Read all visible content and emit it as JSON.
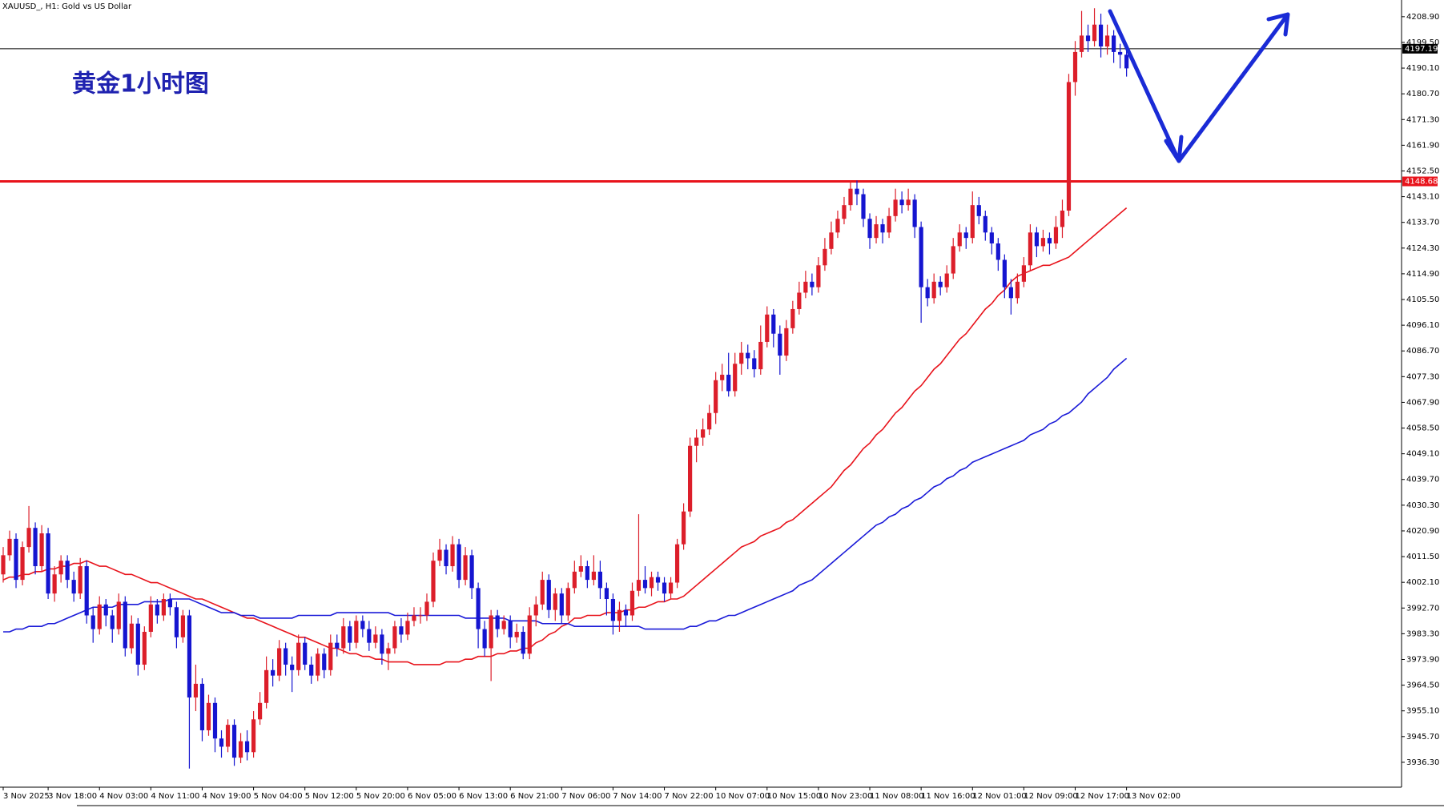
{
  "chart_data": {
    "type": "candlestick",
    "header": "XAUUSD_, H1:  Gold vs US Dollar",
    "title": "黄金1小时图",
    "up_color": "#dc1e2a",
    "down_color": "#1515d0",
    "ylim": [
      3927.2,
      4215.0
    ],
    "yticks": [
      {
        "value": 4208.9,
        "label": "4208.90"
      },
      {
        "value": 4199.5,
        "label": "4199.50"
      },
      {
        "value": 4190.1,
        "label": "4190.10"
      },
      {
        "value": 4180.7,
        "label": "4180.70"
      },
      {
        "value": 4171.3,
        "label": "4171.30"
      },
      {
        "value": 4161.9,
        "label": "4161.90"
      },
      {
        "value": 4152.5,
        "label": "4152.50"
      },
      {
        "value": 4143.1,
        "label": "4143.10"
      },
      {
        "value": 4133.7,
        "label": "4133.70"
      },
      {
        "value": 4124.3,
        "label": "4124.30"
      },
      {
        "value": 4114.9,
        "label": "4114.90"
      },
      {
        "value": 4105.5,
        "label": "4105.50"
      },
      {
        "value": 4096.1,
        "label": "4096.10"
      },
      {
        "value": 4086.7,
        "label": "4086.70"
      },
      {
        "value": 4077.3,
        "label": "4077.30"
      },
      {
        "value": 4067.9,
        "label": "4067.90"
      },
      {
        "value": 4058.5,
        "label": "4058.50"
      },
      {
        "value": 4049.1,
        "label": "4049.10"
      },
      {
        "value": 4039.7,
        "label": "4039.70"
      },
      {
        "value": 4030.3,
        "label": "4030.30"
      },
      {
        "value": 4020.9,
        "label": "4020.90"
      },
      {
        "value": 4011.5,
        "label": "4011.50"
      },
      {
        "value": 4002.1,
        "label": "4002.10"
      },
      {
        "value": 3992.7,
        "label": "3992.70"
      },
      {
        "value": 3983.3,
        "label": "3983.30"
      },
      {
        "value": 3973.9,
        "label": "3973.90"
      },
      {
        "value": 3964.5,
        "label": "3964.50"
      },
      {
        "value": 3955.1,
        "label": "3955.10"
      },
      {
        "value": 3945.7,
        "label": "3945.70"
      },
      {
        "value": 3936.3,
        "label": "3936.30"
      }
    ],
    "current_price": 4197.19,
    "level_line": {
      "value": 4148.68,
      "color": "#e8131b"
    },
    "categories": [
      "3 Nov 2025",
      null,
      null,
      null,
      null,
      null,
      null,
      "3 Nov 18:00",
      null,
      null,
      null,
      null,
      null,
      null,
      null,
      "4 Nov 03:00",
      null,
      null,
      null,
      null,
      null,
      null,
      null,
      "4 Nov 11:00",
      null,
      null,
      null,
      null,
      null,
      null,
      null,
      "4 Nov 19:00",
      null,
      null,
      null,
      null,
      null,
      null,
      null,
      "5 Nov 04:00",
      null,
      null,
      null,
      null,
      null,
      null,
      null,
      "5 Nov 12:00",
      null,
      null,
      null,
      null,
      null,
      null,
      null,
      "5 Nov 20:00",
      null,
      null,
      null,
      null,
      null,
      null,
      null,
      "6 Nov 05:00",
      null,
      null,
      null,
      null,
      null,
      null,
      null,
      "6 Nov 13:00",
      null,
      null,
      null,
      null,
      null,
      null,
      null,
      "6 Nov 21:00",
      null,
      null,
      null,
      null,
      null,
      null,
      null,
      "7 Nov 06:00",
      null,
      null,
      null,
      null,
      null,
      null,
      null,
      "7 Nov 14:00",
      null,
      null,
      null,
      null,
      null,
      null,
      null,
      "7 Nov 22:00",
      null,
      null,
      null,
      null,
      null,
      null,
      null,
      "10 Nov 07:00",
      null,
      null,
      null,
      null,
      null,
      null,
      null,
      "10 Nov 15:00",
      null,
      null,
      null,
      null,
      null,
      null,
      null,
      "10 Nov 23:00",
      null,
      null,
      null,
      null,
      null,
      null,
      null,
      "11 Nov 08:00",
      null,
      null,
      null,
      null,
      null,
      null,
      null,
      "11 Nov 16:00",
      null,
      null,
      null,
      null,
      null,
      null,
      null,
      "12 Nov 01:00",
      null,
      null,
      null,
      null,
      null,
      null,
      null,
      "12 Nov 09:00",
      null,
      null,
      null,
      null,
      null,
      null,
      null,
      "12 Nov 17:00",
      null,
      null,
      null,
      null,
      null,
      null,
      null,
      "13 Nov 02:00"
    ],
    "open": [
      4005,
      4012,
      4018,
      4003,
      4015,
      4022,
      4008,
      4020,
      3998,
      4005,
      4010,
      4003,
      3998,
      4008,
      3990,
      3985,
      3994,
      3990,
      3985,
      3995,
      3978,
      3987,
      3972,
      3984,
      3994,
      3990,
      3996,
      3993,
      3982,
      3990,
      3960,
      3965,
      3948,
      3958,
      3945,
      3942,
      3950,
      3938,
      3944,
      3940,
      3952,
      3958,
      3970,
      3968,
      3978,
      3972,
      3970,
      3980,
      3972,
      3968,
      3976,
      3970,
      3980,
      3978,
      3986,
      3980,
      3988,
      3985,
      3980,
      3983,
      3976,
      3978,
      3986,
      3983,
      3988,
      3990,
      3990,
      3995,
      4010,
      4014,
      4008,
      4016,
      4003,
      4012,
      4000,
      3985,
      3978,
      3990,
      3985,
      3988,
      3982,
      3984,
      3976,
      3990,
      3994,
      4003,
      3992,
      3998,
      3990,
      4000,
      4006,
      4008,
      4003,
      4006,
      4000,
      3996,
      3988,
      3992,
      3990,
      3999,
      4003,
      4000,
      4004,
      4002,
      3998,
      4002,
      4016,
      4028,
      4052,
      4055,
      4058,
      4064,
      4076,
      4078,
      4072,
      4082,
      4086,
      4084,
      4080,
      4090,
      4100,
      4093,
      4085,
      4095,
      4102,
      4108,
      4112,
      4110,
      4118,
      4124,
      4130,
      4135,
      4140,
      4146,
      4144,
      4135,
      4128,
      4133,
      4130,
      4136,
      4142,
      4140,
      4142,
      4132,
      4110,
      4106,
      4112,
      4110,
      4115,
      4125,
      4130,
      4128,
      4140,
      4136,
      4130,
      4126,
      4120,
      4110,
      4106,
      4112,
      4118,
      4130,
      4125,
      4128,
      4126,
      4132,
      4138,
      4185,
      4196,
      4202,
      4200,
      4206,
      4198,
      4202,
      4196,
      4195
    ],
    "high": [
      4015,
      4021,
      4020,
      4017,
      4030,
      4024,
      4023,
      4022,
      4008,
      4012,
      4012,
      4006,
      4011,
      4010,
      3993,
      3997,
      3996,
      3992,
      3998,
      3997,
      3990,
      3989,
      3986,
      3997,
      3996,
      3998,
      3998,
      3995,
      3992,
      3992,
      3972,
      3967,
      3961,
      3960,
      3948,
      3952,
      3952,
      3947,
      3948,
      3955,
      3962,
      3975,
      3974,
      3981,
      3980,
      3975,
      3983,
      3982,
      3975,
      3978,
      3978,
      3983,
      3983,
      3989,
      3988,
      3990,
      3990,
      3988,
      3986,
      3985,
      3980,
      3988,
      3989,
      3991,
      3993,
      3993,
      3998,
      4013,
      4018,
      4016,
      4019,
      4018,
      4015,
      4014,
      4002,
      3988,
      3992,
      3992,
      3990,
      3990,
      3987,
      3986,
      3993,
      3997,
      4006,
      4005,
      4000,
      4000,
      4002,
      4010,
      4012,
      4010,
      4012,
      4010,
      4002,
      3998,
      3995,
      3994,
      4002,
      4027,
      4008,
      4006,
      4006,
      4004,
      4004,
      4018,
      4031,
      4055,
      4058,
      4062,
      4067,
      4079,
      4082,
      4086,
      4086,
      4090,
      4089,
      4087,
      4096,
      4103,
      4102,
      4096,
      4098,
      4105,
      4112,
      4116,
      4115,
      4121,
      4128,
      4134,
      4138,
      4143,
      4149,
      4149,
      4146,
      4137,
      4136,
      4135,
      4139,
      4146,
      4145,
      4146,
      4144,
      4134,
      4113,
      4115,
      4114,
      4118,
      4128,
      4133,
      4132,
      4145,
      4143,
      4138,
      4132,
      4128,
      4122,
      4113,
      4115,
      4121,
      4133,
      4132,
      4131,
      4130,
      4136,
      4142,
      4188,
      4200,
      4211,
      4206,
      4212,
      4210,
      4206,
      4204,
      4199,
      4197
    ],
    "low": [
      4002,
      4010,
      4000,
      4001,
      4013,
      4005,
      4006,
      3996,
      3995,
      4002,
      4000,
      3995,
      3996,
      3987,
      3980,
      3983,
      3986,
      3980,
      3983,
      3975,
      3976,
      3968,
      3970,
      3982,
      3987,
      3988,
      3990,
      3978,
      3980,
      3934,
      3955,
      3944,
      3946,
      3940,
      3938,
      3940,
      3935,
      3936,
      3937,
      3938,
      3950,
      3956,
      3964,
      3966,
      3968,
      3962,
      3968,
      3970,
      3965,
      3966,
      3967,
      3968,
      3975,
      3976,
      3977,
      3978,
      3982,
      3977,
      3978,
      3972,
      3970,
      3976,
      3980,
      3981,
      3986,
      3987,
      3988,
      3993,
      4008,
      4005,
      4006,
      4000,
      4001,
      3996,
      3978,
      3975,
      3966,
      3982,
      3983,
      3978,
      3980,
      3974,
      3974,
      3986,
      3992,
      3989,
      3988,
      3987,
      3988,
      3998,
      4004,
      4000,
      4001,
      3996,
      3990,
      3983,
      3984,
      3986,
      3988,
      3997,
      3998,
      3997,
      3999,
      3995,
      3996,
      4000,
      4014,
      4026,
      4046,
      4052,
      4056,
      4060,
      4072,
      4070,
      4070,
      4078,
      4080,
      4077,
      4078,
      4088,
      4088,
      4078,
      4083,
      4093,
      4100,
      4106,
      4107,
      4108,
      4116,
      4122,
      4128,
      4133,
      4138,
      4140,
      4132,
      4124,
      4126,
      4126,
      4128,
      4134,
      4137,
      4138,
      4128,
      4097,
      4103,
      4104,
      4107,
      4108,
      4113,
      4123,
      4124,
      4126,
      4133,
      4127,
      4122,
      4116,
      4106,
      4100,
      4104,
      4110,
      4116,
      4121,
      4123,
      4122,
      4124,
      4128,
      4136,
      4180,
      4194,
      4196,
      4198,
      4194,
      4195,
      4192,
      4190,
      4187
    ],
    "close": [
      4012,
      4018,
      4003,
      4015,
      4022,
      4008,
      4020,
      3998,
      4005,
      4010,
      4003,
      3998,
      4008,
      3990,
      3985,
      3994,
      3990,
      3985,
      3995,
      3978,
      3987,
      3972,
      3984,
      3994,
      3990,
      3996,
      3993,
      3982,
      3990,
      3960,
      3965,
      3948,
      3958,
      3945,
      3942,
      3950,
      3938,
      3944,
      3940,
      3952,
      3958,
      3970,
      3968,
      3978,
      3972,
      3970,
      3980,
      3972,
      3968,
      3976,
      3970,
      3980,
      3978,
      3986,
      3980,
      3988,
      3985,
      3980,
      3983,
      3976,
      3978,
      3986,
      3983,
      3988,
      3990,
      3990,
      3995,
      4010,
      4014,
      4008,
      4016,
      4003,
      4012,
      4000,
      3985,
      3978,
      3990,
      3985,
      3988,
      3982,
      3984,
      3976,
      3990,
      3994,
      4003,
      3992,
      3998,
      3990,
      4000,
      4006,
      4008,
      4003,
      4006,
      4000,
      3996,
      3988,
      3992,
      3990,
      3999,
      4003,
      4000,
      4004,
      4002,
      3998,
      4002,
      4016,
      4028,
      4052,
      4055,
      4058,
      4064,
      4076,
      4078,
      4072,
      4082,
      4086,
      4084,
      4080,
      4090,
      4100,
      4093,
      4085,
      4095,
      4102,
      4108,
      4112,
      4110,
      4118,
      4124,
      4130,
      4135,
      4140,
      4146,
      4144,
      4135,
      4128,
      4133,
      4130,
      4136,
      4142,
      4140,
      4142,
      4132,
      4110,
      4106,
      4112,
      4110,
      4115,
      4125,
      4130,
      4128,
      4140,
      4136,
      4130,
      4126,
      4120,
      4110,
      4106,
      4112,
      4118,
      4130,
      4125,
      4128,
      4126,
      4132,
      4138,
      4185,
      4196,
      4202,
      4200,
      4206,
      4198,
      4202,
      4196,
      4195,
      4190
    ],
    "overlays": [
      {
        "color": "#e8131b",
        "values": [
          4003,
          4004,
          4004,
          4005,
          4005,
          4006,
          4006,
          4007,
          4007,
          4008,
          4008,
          4009,
          4009,
          4010,
          4009,
          4008,
          4008,
          4007,
          4006,
          4005,
          4005,
          4004,
          4003,
          4002,
          4002,
          4001,
          4000,
          3999,
          3998,
          3997,
          3996,
          3996,
          3995,
          3994,
          3993,
          3992,
          3991,
          3990,
          3989,
          3989,
          3988,
          3987,
          3986,
          3985,
          3984,
          3983,
          3982,
          3982,
          3981,
          3980,
          3979,
          3978,
          3978,
          3977,
          3976,
          3976,
          3975,
          3975,
          3974,
          3974,
          3973,
          3973,
          3973,
          3973,
          3972,
          3972,
          3972,
          3972,
          3972,
          3973,
          3973,
          3973,
          3974,
          3974,
          3975,
          3975,
          3975,
          3976,
          3976,
          3977,
          3977,
          3978,
          3978,
          3980,
          3981,
          3983,
          3984,
          3986,
          3987,
          3989,
          3989,
          3990,
          3990,
          3990,
          3991,
          3991,
          3991,
          3992,
          3992,
          3993,
          3993,
          3994,
          3995,
          3995,
          3996,
          3996,
          3997,
          3999,
          4001,
          4003,
          4005,
          4007,
          4009,
          4011,
          4013,
          4015,
          4016,
          4017,
          4019,
          4020,
          4021,
          4022,
          4024,
          4025,
          4027,
          4029,
          4031,
          4033,
          4035,
          4037,
          4040,
          4043,
          4045,
          4048,
          4051,
          4053,
          4056,
          4058,
          4061,
          4064,
          4066,
          4069,
          4072,
          4074,
          4077,
          4080,
          4082,
          4085,
          4088,
          4091,
          4093,
          4096,
          4099,
          4102,
          4104,
          4107,
          4109,
          4112,
          4114,
          4115,
          4116,
          4117,
          4118,
          4118,
          4119,
          4120,
          4121,
          4123,
          4125,
          4127,
          4129,
          4131,
          4133,
          4135,
          4137,
          4139
        ]
      },
      {
        "color": "#1a1ad8",
        "values": [
          3984,
          3984,
          3985,
          3985,
          3986,
          3986,
          3986,
          3987,
          3987,
          3988,
          3989,
          3990,
          3991,
          3992,
          3993,
          3993,
          3993,
          3993,
          3994,
          3994,
          3994,
          3994,
          3995,
          3995,
          3995,
          3995,
          3996,
          3996,
          3996,
          3996,
          3995,
          3994,
          3993,
          3992,
          3991,
          3991,
          3991,
          3990,
          3990,
          3990,
          3989,
          3989,
          3989,
          3989,
          3989,
          3989,
          3990,
          3990,
          3990,
          3990,
          3990,
          3990,
          3991,
          3991,
          3991,
          3991,
          3991,
          3991,
          3991,
          3991,
          3991,
          3990,
          3990,
          3990,
          3990,
          3990,
          3990,
          3990,
          3990,
          3990,
          3990,
          3990,
          3989,
          3989,
          3989,
          3989,
          3989,
          3989,
          3989,
          3988,
          3988,
          3988,
          3988,
          3988,
          3987,
          3987,
          3987,
          3987,
          3987,
          3986,
          3986,
          3986,
          3986,
          3986,
          3986,
          3986,
          3986,
          3986,
          3986,
          3986,
          3985,
          3985,
          3985,
          3985,
          3985,
          3985,
          3985,
          3986,
          3986,
          3987,
          3988,
          3988,
          3989,
          3990,
          3990,
          3991,
          3992,
          3993,
          3994,
          3995,
          3996,
          3997,
          3998,
          3999,
          4001,
          4002,
          4003,
          4005,
          4007,
          4009,
          4011,
          4013,
          4015,
          4017,
          4019,
          4021,
          4023,
          4024,
          4026,
          4027,
          4029,
          4030,
          4032,
          4033,
          4035,
          4037,
          4038,
          4040,
          4041,
          4043,
          4044,
          4046,
          4047,
          4048,
          4049,
          4050,
          4051,
          4052,
          4053,
          4054,
          4056,
          4057,
          4058,
          4060,
          4061,
          4063,
          4064,
          4066,
          4068,
          4071,
          4073,
          4075,
          4077,
          4080,
          4082,
          4084
        ]
      }
    ]
  }
}
